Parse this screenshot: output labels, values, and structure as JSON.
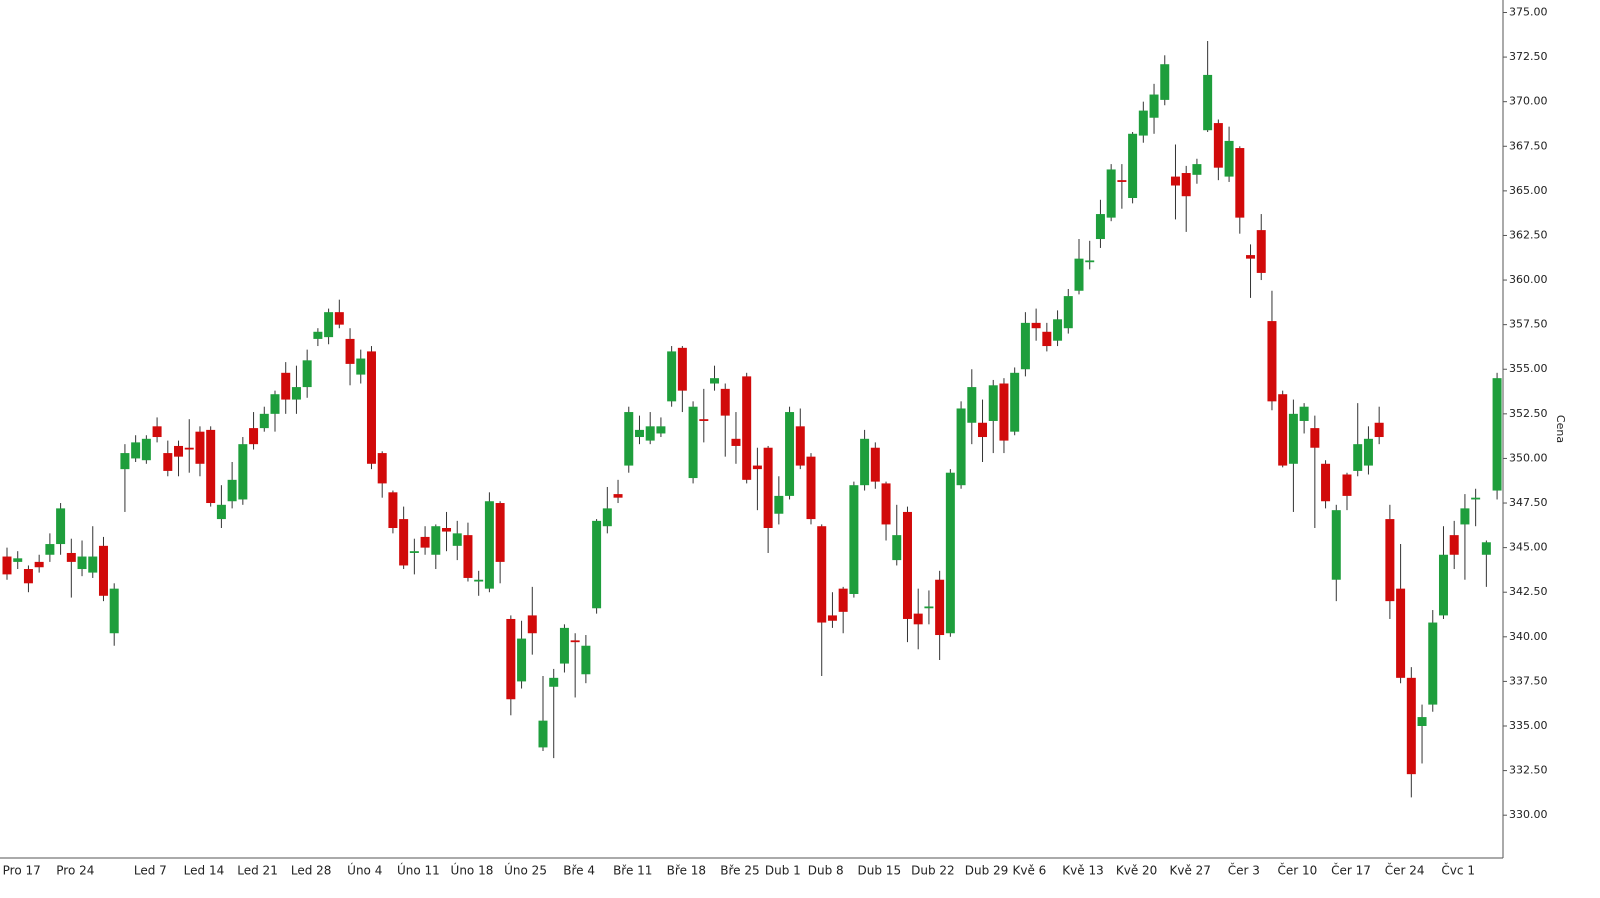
{
  "chart_data": {
    "type": "candlestick",
    "y_label": "Cena",
    "categories": [
      null,
      "Pro 17",
      null,
      null,
      null,
      null,
      "Pro 24",
      null,
      null,
      null,
      null,
      null,
      null,
      "Led 7",
      null,
      null,
      null,
      null,
      "Led 14",
      null,
      null,
      null,
      null,
      "Led 21",
      null,
      null,
      null,
      null,
      "Led 28",
      null,
      null,
      null,
      null,
      "Úno 4",
      null,
      null,
      null,
      null,
      "Úno 11",
      null,
      null,
      null,
      null,
      "Úno 18",
      null,
      null,
      null,
      null,
      "Úno 25",
      null,
      null,
      null,
      null,
      "Bře 4",
      null,
      null,
      null,
      null,
      "Bře 11",
      null,
      null,
      null,
      null,
      "Bře 18",
      null,
      null,
      null,
      null,
      "Bře 25",
      null,
      null,
      null,
      "Dub 1",
      null,
      null,
      null,
      "Dub 8",
      null,
      null,
      null,
      null,
      "Dub 15",
      null,
      null,
      null,
      null,
      "Dub 22",
      null,
      null,
      null,
      null,
      "Dub 29",
      null,
      null,
      null,
      "Kvě 6",
      null,
      null,
      null,
      null,
      "Kvě 13",
      null,
      null,
      null,
      null,
      "Kvě 20",
      null,
      null,
      null,
      null,
      "Kvě 27",
      null,
      null,
      null,
      null,
      "Čer 3",
      null,
      null,
      null,
      null,
      "Čer 10",
      null,
      null,
      null,
      null,
      "Čer 17",
      null,
      null,
      null,
      null,
      "Čer 24",
      null,
      null,
      null,
      null,
      "Čvc 1",
      null,
      null,
      null,
      null
    ],
    "open": [
      344.5,
      344.2,
      343.8,
      344.2,
      344.6,
      345.2,
      344.7,
      343.8,
      343.6,
      345.1,
      340.2,
      349.4,
      350.0,
      349.9,
      351.8,
      350.3,
      350.7,
      350.6,
      351.5,
      351.6,
      346.6,
      347.6,
      347.7,
      351.7,
      351.7,
      352.5,
      354.8,
      353.3,
      354.0,
      356.7,
      356.8,
      358.2,
      356.7,
      354.7,
      356.0,
      350.3,
      348.1,
      346.6,
      344.7,
      345.6,
      344.6,
      346.1,
      345.1,
      345.7,
      343.1,
      342.7,
      347.5,
      341.0,
      337.5,
      341.2,
      333.8,
      337.2,
      338.5,
      339.8,
      337.9,
      341.6,
      346.2,
      348.0,
      349.6,
      351.2,
      351.0,
      351.4,
      353.2,
      356.2,
      348.9,
      352.2,
      354.2,
      353.9,
      351.1,
      354.6,
      349.6,
      350.6,
      346.9,
      347.9,
      351.8,
      350.1,
      346.2,
      341.2,
      342.7,
      342.4,
      348.5,
      350.6,
      348.6,
      344.3,
      347.0,
      341.3,
      341.6,
      343.2,
      340.2,
      348.5,
      352.0,
      352.0,
      352.1,
      354.2,
      351.5,
      355.0,
      357.6,
      357.1,
      356.6,
      357.3,
      359.4,
      361.0,
      362.3,
      363.5,
      365.6,
      364.6,
      368.1,
      369.1,
      370.1,
      365.8,
      366.0,
      365.9,
      368.4,
      368.8,
      365.8,
      367.4,
      361.4,
      362.8,
      357.7,
      353.6,
      349.7,
      352.1,
      351.7,
      349.7,
      343.2,
      349.1,
      349.3,
      349.6,
      352.0,
      346.6,
      342.7,
      337.7,
      335.0,
      336.2,
      341.2,
      345.7,
      346.3,
      347.7,
      344.6,
      348.2
    ],
    "high": [
      345.0,
      344.8,
      344.0,
      344.6,
      345.8,
      347.5,
      345.5,
      345.4,
      346.2,
      345.6,
      343.0,
      350.8,
      351.3,
      351.3,
      352.3,
      351.0,
      351.0,
      352.2,
      351.8,
      351.8,
      348.5,
      349.8,
      351.2,
      352.6,
      352.9,
      353.8,
      355.4,
      355.2,
      356.1,
      357.3,
      358.4,
      358.9,
      357.3,
      356.1,
      356.3,
      350.4,
      348.2,
      347.3,
      345.5,
      346.2,
      346.3,
      347.0,
      346.5,
      346.4,
      343.7,
      348.1,
      347.6,
      341.2,
      340.9,
      342.8,
      337.8,
      338.2,
      340.7,
      340.2,
      340.1,
      346.6,
      348.4,
      348.8,
      352.9,
      352.4,
      352.6,
      352.3,
      356.3,
      356.3,
      353.2,
      353.9,
      355.2,
      354.2,
      352.6,
      354.8,
      350.6,
      350.7,
      349.0,
      352.9,
      352.8,
      350.3,
      346.3,
      342.5,
      342.8,
      348.7,
      351.6,
      350.9,
      348.7,
      347.4,
      347.3,
      342.7,
      342.6,
      343.7,
      349.4,
      353.2,
      355.0,
      353.3,
      354.4,
      354.5,
      355.1,
      358.2,
      358.4,
      357.6,
      358.3,
      359.5,
      362.3,
      362.2,
      364.5,
      366.5,
      366.5,
      368.3,
      370.0,
      371.0,
      372.6,
      367.6,
      366.4,
      366.8,
      373.4,
      369.0,
      368.6,
      367.5,
      362.0,
      363.7,
      359.4,
      353.8,
      353.3,
      353.1,
      352.4,
      349.9,
      347.4,
      349.2,
      353.1,
      351.8,
      352.9,
      347.4,
      345.2,
      338.3,
      336.2,
      341.5,
      346.2,
      346.5,
      348.0,
      348.3,
      345.4,
      354.8
    ],
    "low": [
      343.2,
      343.8,
      342.5,
      343.6,
      344.2,
      344.6,
      342.2,
      343.4,
      343.3,
      342.0,
      339.5,
      347.0,
      349.8,
      349.7,
      350.9,
      349.0,
      349.0,
      349.2,
      349.0,
      347.3,
      346.1,
      347.2,
      347.4,
      350.5,
      351.5,
      351.5,
      352.5,
      352.5,
      353.4,
      356.3,
      356.4,
      357.3,
      354.1,
      354.2,
      349.4,
      347.8,
      345.8,
      343.8,
      343.5,
      344.6,
      343.8,
      344.8,
      344.3,
      343.1,
      342.3,
      342.5,
      343.0,
      335.6,
      337.1,
      339.0,
      333.6,
      333.2,
      338.0,
      336.6,
      337.4,
      341.3,
      345.8,
      347.5,
      349.2,
      350.8,
      350.8,
      351.2,
      352.9,
      352.6,
      348.6,
      350.9,
      353.8,
      350.1,
      349.7,
      348.6,
      347.1,
      344.7,
      346.3,
      347.7,
      349.4,
      346.3,
      337.8,
      340.5,
      340.2,
      342.2,
      348.2,
      348.3,
      345.4,
      344.0,
      339.7,
      339.3,
      340.7,
      338.7,
      340.0,
      348.3,
      350.8,
      349.8,
      350.3,
      350.3,
      351.3,
      354.6,
      356.6,
      356.0,
      356.3,
      357.0,
      359.2,
      360.6,
      361.8,
      363.3,
      364.0,
      364.3,
      367.7,
      368.2,
      369.8,
      363.4,
      362.7,
      365.4,
      368.3,
      365.6,
      365.5,
      362.6,
      359.0,
      360.0,
      352.7,
      349.5,
      347.0,
      351.4,
      346.1,
      347.2,
      342.0,
      347.1,
      349.0,
      349.1,
      350.8,
      341.0,
      337.4,
      331.0,
      332.9,
      335.8,
      341.0,
      343.8,
      343.2,
      346.2,
      342.8,
      347.7
    ],
    "close": [
      343.5,
      344.4,
      343.0,
      343.9,
      345.2,
      347.2,
      344.2,
      344.5,
      344.5,
      342.3,
      342.7,
      350.3,
      350.9,
      351.1,
      351.2,
      349.3,
      350.1,
      350.5,
      349.7,
      347.5,
      347.4,
      348.8,
      350.8,
      350.8,
      352.5,
      353.6,
      353.3,
      354.0,
      355.5,
      357.1,
      358.2,
      357.5,
      355.3,
      355.6,
      349.7,
      348.6,
      346.1,
      344.0,
      344.8,
      345.0,
      346.2,
      345.9,
      345.8,
      343.3,
      343.2,
      347.6,
      344.2,
      336.5,
      339.9,
      340.2,
      335.3,
      337.7,
      340.5,
      339.7,
      339.5,
      346.5,
      347.2,
      347.8,
      352.6,
      351.6,
      351.8,
      351.8,
      356.0,
      353.8,
      352.9,
      352.1,
      354.5,
      352.4,
      350.7,
      348.8,
      349.4,
      346.1,
      347.9,
      352.6,
      349.6,
      346.6,
      340.8,
      340.9,
      341.4,
      348.5,
      351.1,
      348.7,
      346.3,
      345.7,
      341.0,
      340.7,
      341.7,
      340.1,
      349.2,
      352.8,
      354.0,
      351.2,
      354.1,
      351.0,
      354.8,
      357.6,
      357.3,
      356.3,
      357.8,
      359.1,
      361.2,
      361.1,
      363.7,
      366.2,
      365.5,
      368.2,
      369.5,
      370.4,
      372.1,
      365.3,
      364.7,
      366.5,
      371.5,
      366.3,
      367.8,
      363.5,
      361.2,
      360.4,
      353.2,
      349.6,
      352.5,
      352.9,
      350.6,
      347.6,
      347.1,
      347.9,
      350.8,
      351.1,
      351.2,
      342.0,
      337.7,
      332.3,
      335.5,
      340.8,
      344.6,
      344.6,
      347.2,
      347.8,
      345.3,
      354.5
    ],
    "up_color": "#1e9e3c",
    "down_color": "#d10a0a",
    "wick_color": "#333333",
    "ylim": [
      327.6,
      375.7
    ],
    "yticks": [
      {
        "value": 330,
        "label": "330.00"
      },
      {
        "value": 332.5,
        "label": "332.50"
      },
      {
        "value": 335,
        "label": "335.00"
      },
      {
        "value": 337.5,
        "label": "337.50"
      },
      {
        "value": 340,
        "label": "340.00"
      },
      {
        "value": 342.5,
        "label": "342.50"
      },
      {
        "value": 345,
        "label": "345.00"
      },
      {
        "value": 347.5,
        "label": "347.50"
      },
      {
        "value": 350,
        "label": "350.00"
      },
      {
        "value": 352.5,
        "label": "352.50"
      },
      {
        "value": 355,
        "label": "355.00"
      },
      {
        "value": 357.5,
        "label": "357.50"
      },
      {
        "value": 360,
        "label": "360.00"
      },
      {
        "value": 362.5,
        "label": "362.50"
      },
      {
        "value": 365,
        "label": "365.00"
      },
      {
        "value": 367.5,
        "label": "367.50"
      },
      {
        "value": 370,
        "label": "370.00"
      },
      {
        "value": 372.5,
        "label": "372.50"
      },
      {
        "value": 375,
        "label": "375.00"
      }
    ]
  }
}
